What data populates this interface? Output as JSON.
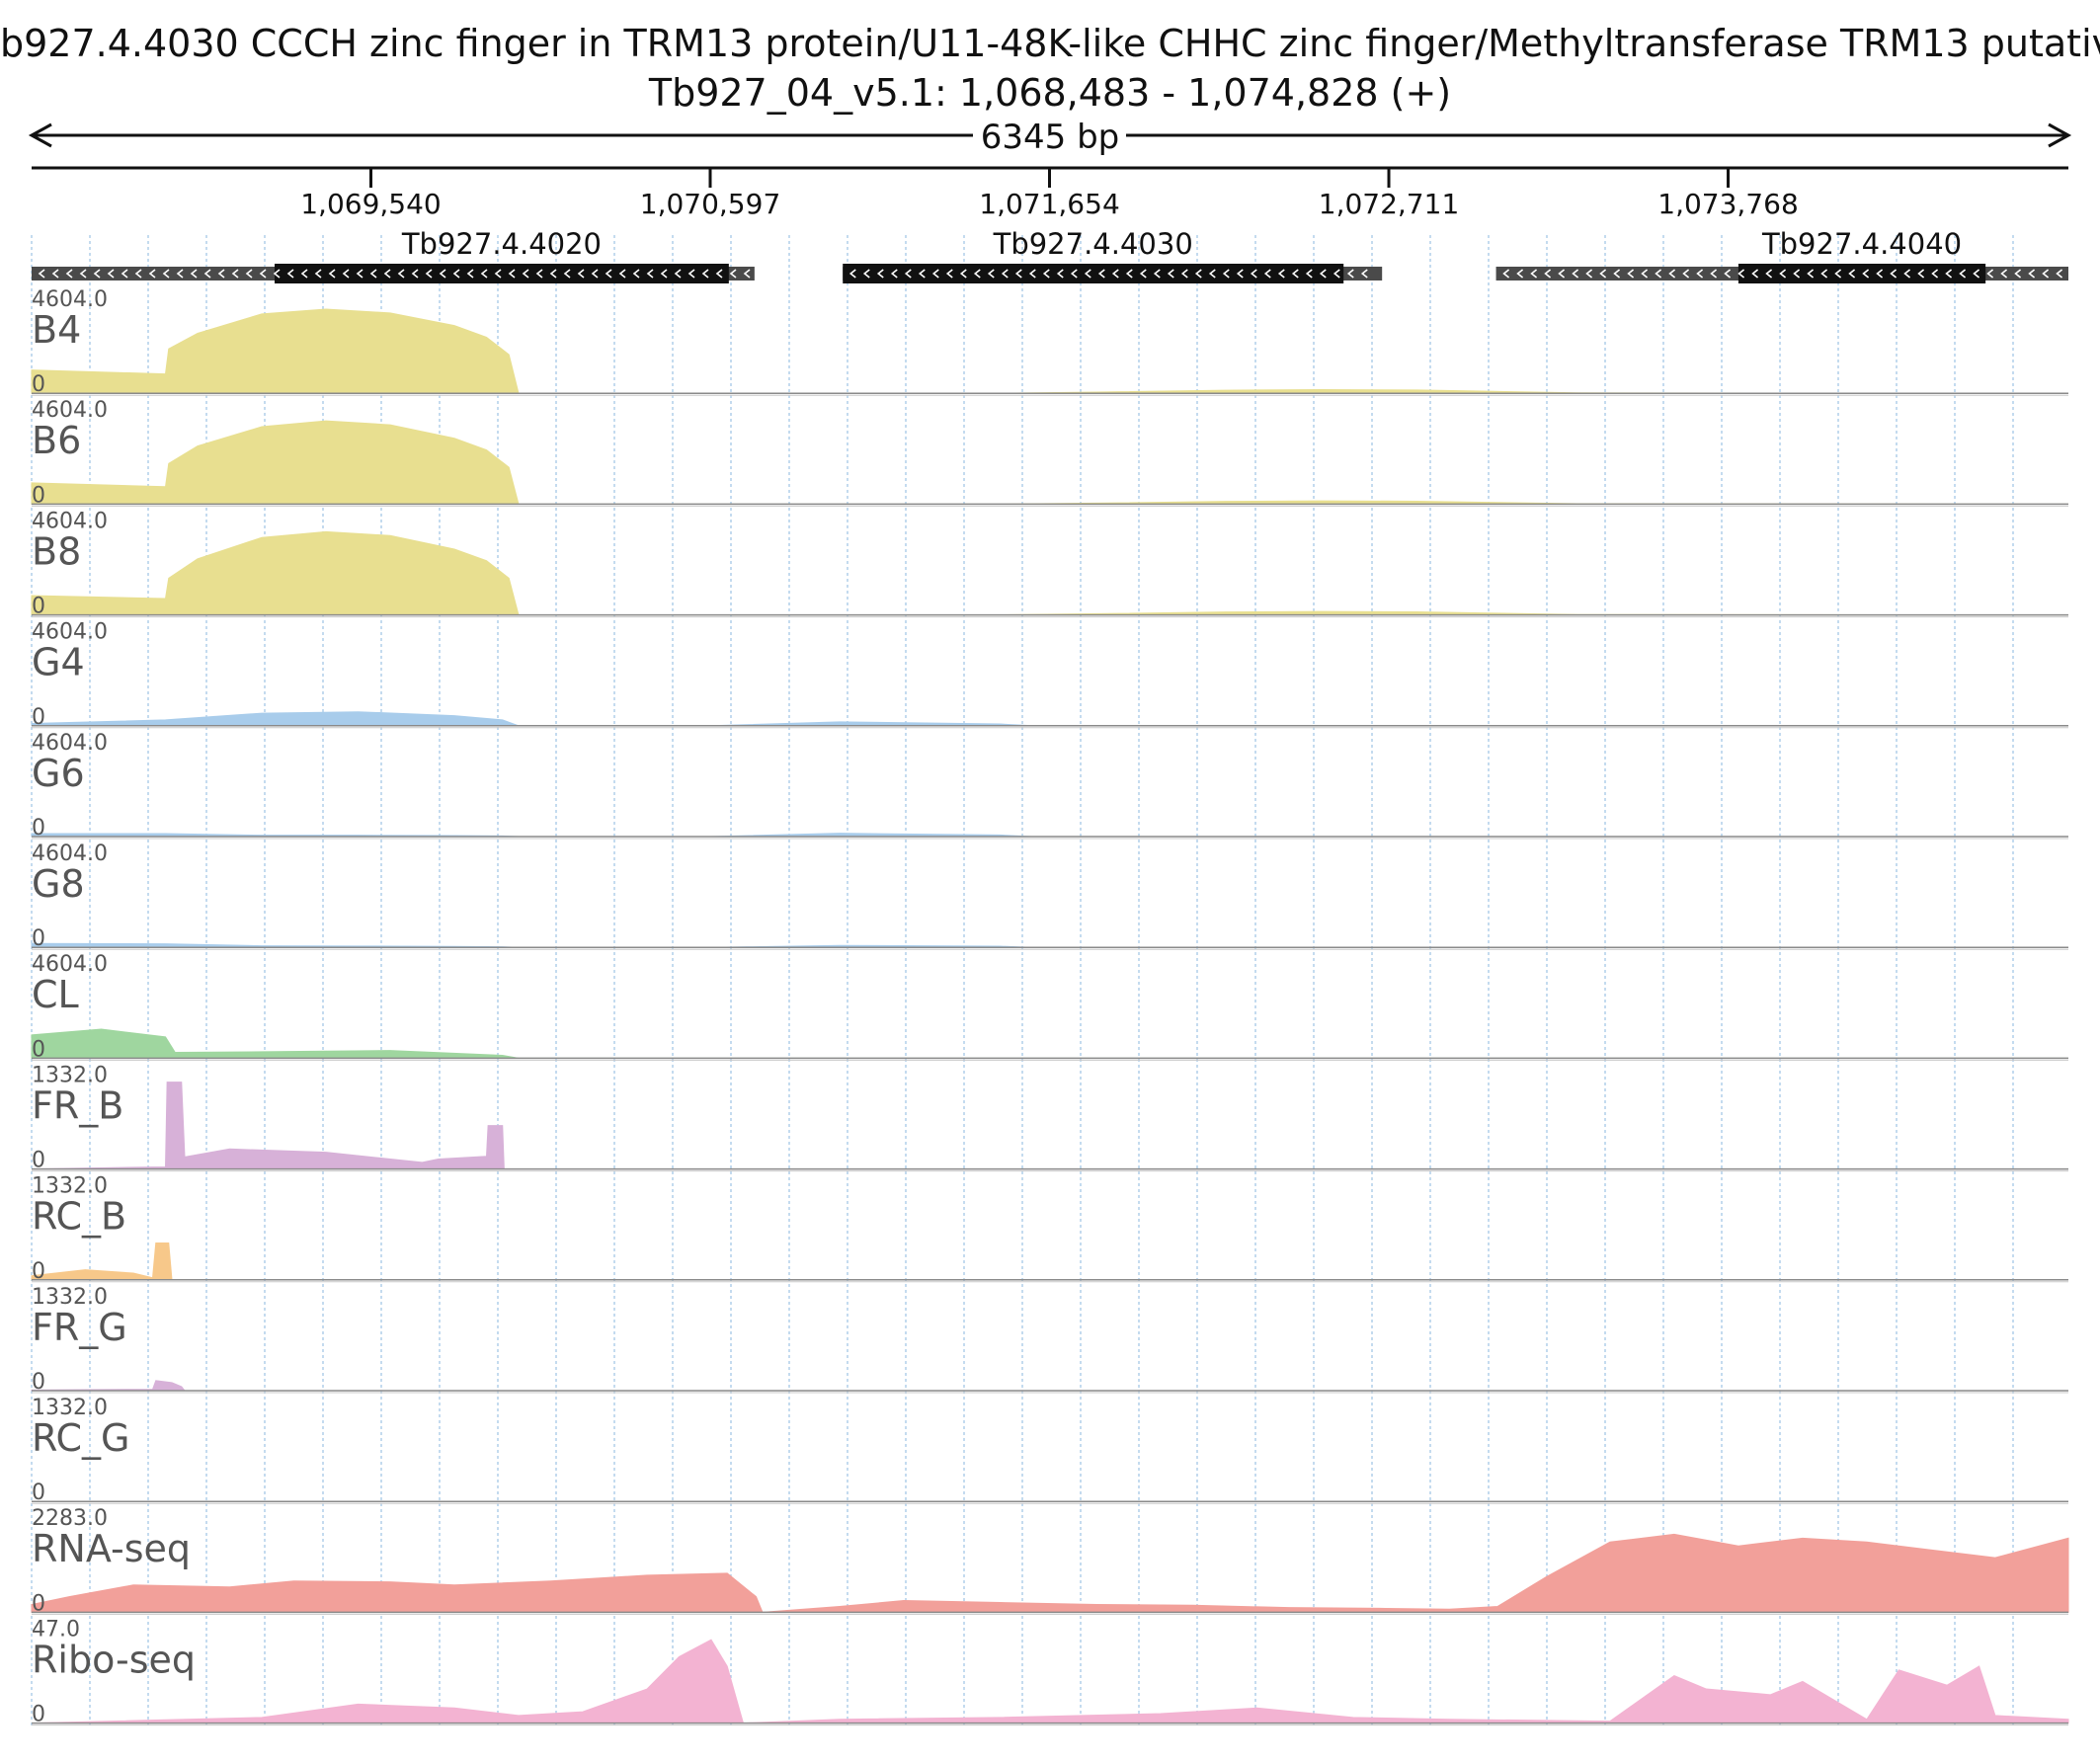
{
  "header": {
    "title": "b927.4.4030  CCCH zinc finger in TRM13 protein/U11-48K-like CHHC zinc finger/Methyltransferase TRM13  putativ",
    "locus": "Tb927_04_v5.1: 1,068,483 - 1,074,828 (+)",
    "span_label": "6345 bp"
  },
  "chart_data": {
    "type": "area",
    "x_range": [
      1068483,
      1074828
    ],
    "x_ticks": [
      {
        "value": 1069540,
        "label": "1,069,540"
      },
      {
        "value": 1070597,
        "label": "1,070,597"
      },
      {
        "value": 1071654,
        "label": "1,071,654"
      },
      {
        "value": 1072711,
        "label": "1,072,711"
      },
      {
        "value": 1073768,
        "label": "1,073,768"
      }
    ],
    "grid": true,
    "genes": [
      {
        "name": "Tb927.4.4020",
        "strand": "-",
        "utr_start": 1068483,
        "cds_start": 1069240,
        "cds_end": 1070655,
        "utr_end": 1070735
      },
      {
        "name": "Tb927.4.4030",
        "strand": "-",
        "utr_start": 1071010,
        "cds_start": 1071010,
        "cds_end": 1072570,
        "utr_end": 1072690
      },
      {
        "name": "Tb927.4.4040",
        "strand": "-",
        "utr_start": 1073045,
        "cds_start": 1073800,
        "cds_end": 1074570,
        "utr_end": 1074828
      }
    ],
    "tracks": [
      {
        "name": "B4",
        "ymax_label": "4604.0",
        "ymin_label": "0",
        "ylim": [
          0,
          4604
        ],
        "color": "#e8df90",
        "x": [
          1068483,
          1068900,
          1068910,
          1069000,
          1069200,
          1069400,
          1069600,
          1069800,
          1069900,
          1069970,
          1070000,
          1071500,
          1071800,
          1072200,
          1072500,
          1072800,
          1073000,
          1073300,
          1074828
        ],
        "y": [
          1200,
          1000,
          2300,
          3100,
          4100,
          4350,
          4150,
          3500,
          2900,
          2000,
          0,
          0,
          60,
          160,
          190,
          170,
          110,
          20,
          0
        ]
      },
      {
        "name": "B6",
        "ymax_label": "4604.0",
        "ymin_label": "0",
        "ylim": [
          0,
          4604
        ],
        "color": "#e8df90",
        "x": [
          1068483,
          1068900,
          1068910,
          1069000,
          1069200,
          1069400,
          1069600,
          1069800,
          1069900,
          1069970,
          1070000,
          1071500,
          1071800,
          1072200,
          1072500,
          1072800,
          1073000,
          1073300,
          1074828
        ],
        "y": [
          1100,
          900,
          2100,
          3000,
          4000,
          4300,
          4100,
          3400,
          2800,
          1900,
          0,
          0,
          50,
          140,
          170,
          150,
          100,
          20,
          0
        ]
      },
      {
        "name": "B8",
        "ymax_label": "4604.0",
        "ymin_label": "0",
        "ylim": [
          0,
          4604
        ],
        "color": "#e8df90",
        "x": [
          1068483,
          1068900,
          1068910,
          1069000,
          1069200,
          1069400,
          1069600,
          1069800,
          1069900,
          1069970,
          1070000,
          1071500,
          1071800,
          1072200,
          1072500,
          1072800,
          1073000,
          1073300,
          1074828
        ],
        "y": [
          1000,
          850,
          1900,
          2900,
          4000,
          4300,
          4100,
          3400,
          2800,
          1900,
          0,
          0,
          60,
          150,
          180,
          160,
          100,
          20,
          0
        ]
      },
      {
        "name": "G4",
        "ymax_label": "4604.0",
        "ymin_label": "0",
        "ylim": [
          0,
          4604
        ],
        "color": "#a8cceb",
        "x": [
          1068483,
          1068900,
          1069200,
          1069500,
          1069800,
          1069950,
          1070000,
          1070600,
          1071000,
          1071500,
          1071600,
          1074828
        ],
        "y": [
          120,
          300,
          650,
          720,
          520,
          300,
          0,
          0,
          200,
          90,
          0,
          0
        ]
      },
      {
        "name": "G6",
        "ymax_label": "4604.0",
        "ymin_label": "0",
        "ylim": [
          0,
          4604
        ],
        "color": "#a8cceb",
        "x": [
          1068483,
          1068900,
          1069200,
          1069500,
          1069800,
          1069950,
          1070000,
          1070600,
          1071000,
          1071500,
          1071600,
          1074828
        ],
        "y": [
          150,
          150,
          70,
          70,
          50,
          30,
          0,
          0,
          170,
          80,
          0,
          0
        ]
      },
      {
        "name": "G8",
        "ymax_label": "4604.0",
        "ymin_label": "0",
        "ylim": [
          0,
          4604
        ],
        "color": "#a8cceb",
        "x": [
          1068483,
          1068900,
          1069200,
          1069500,
          1069800,
          1069950,
          1070000,
          1070600,
          1071000,
          1071500,
          1071600,
          1074828
        ],
        "y": [
          200,
          180,
          80,
          70,
          50,
          30,
          0,
          0,
          100,
          60,
          0,
          0
        ]
      },
      {
        "name": "CL",
        "ymax_label": "4604.0",
        "ymin_label": "0",
        "ylim": [
          0,
          4604
        ],
        "color": "#9fd69f",
        "x": [
          1068483,
          1068700,
          1068900,
          1068930,
          1069200,
          1069600,
          1069950,
          1070000,
          1074828
        ],
        "y": [
          1200,
          1500,
          1100,
          300,
          330,
          400,
          150,
          0,
          0
        ]
      },
      {
        "name": "FR_B",
        "ymax_label": "1332.0",
        "ymin_label": "0",
        "ylim": [
          0,
          1332
        ],
        "color": "#d7b1d8",
        "x": [
          1068483,
          1068860,
          1068900,
          1068905,
          1068950,
          1068960,
          1069100,
          1069400,
          1069700,
          1069750,
          1069900,
          1069905,
          1069950,
          1069955,
          1074828
        ],
        "y": [
          0,
          30,
          30,
          1300,
          1300,
          180,
          300,
          250,
          100,
          150,
          190,
          650,
          650,
          0,
          0
        ]
      },
      {
        "name": "RC_B",
        "ymax_label": "1332.0",
        "ymin_label": "0",
        "ylim": [
          0,
          1332
        ],
        "color": "#f7c88a",
        "x": [
          1068483,
          1068650,
          1068800,
          1068860,
          1068870,
          1068910,
          1068920,
          1074828
        ],
        "y": [
          60,
          150,
          100,
          30,
          550,
          550,
          0,
          0
        ]
      },
      {
        "name": "FR_G",
        "ymax_label": "1332.0",
        "ymin_label": "0",
        "ylim": [
          0,
          1332
        ],
        "color": "#d7b1d8",
        "x": [
          1068483,
          1068860,
          1068870,
          1068920,
          1068950,
          1068960,
          1074828
        ],
        "y": [
          10,
          20,
          150,
          120,
          60,
          0,
          0
        ]
      },
      {
        "name": "RC_G",
        "ymax_label": "1332.0",
        "ymin_label": "0",
        "ylim": [
          0,
          1332
        ],
        "color": "#f7c88a",
        "x": [
          1068483,
          1074828
        ],
        "y": [
          0,
          0
        ]
      },
      {
        "name": "RNA-seq",
        "ymax_label": "2283.0",
        "ymin_label": "0",
        "ylim": [
          0,
          2283
        ],
        "color": "#f2a09a",
        "x": [
          1068483,
          1068600,
          1068800,
          1069100,
          1069300,
          1069600,
          1069800,
          1070100,
          1070400,
          1070650,
          1070740,
          1070760,
          1071000,
          1071200,
          1071500,
          1071800,
          1072100,
          1072400,
          1072700,
          1072900,
          1073050,
          1073200,
          1073400,
          1073600,
          1073800,
          1074000,
          1074200,
          1074400,
          1074600,
          1074828
        ],
        "y": [
          200,
          400,
          700,
          650,
          800,
          780,
          700,
          800,
          950,
          1000,
          400,
          0,
          150,
          300,
          250,
          200,
          180,
          120,
          100,
          80,
          150,
          900,
          1800,
          2000,
          1700,
          1900,
          1800,
          1600,
          1400,
          1900
        ]
      },
      {
        "name": "Ribo-seq",
        "ymax_label": "47.0",
        "ymin_label": "0",
        "ylim": [
          0,
          47
        ],
        "color": "#f3b3d2",
        "x": [
          1068483,
          1069200,
          1069500,
          1069800,
          1070000,
          1070200,
          1070400,
          1070500,
          1070600,
          1070650,
          1070700,
          1071000,
          1071500,
          1072000,
          1072300,
          1072600,
          1072900,
          1073400,
          1073600,
          1073700,
          1073900,
          1074000,
          1074200,
          1074300,
          1074450,
          1074550,
          1074600,
          1074828
        ],
        "y": [
          0,
          3,
          10,
          8,
          4,
          6,
          18,
          35,
          44,
          30,
          0,
          2,
          3,
          5,
          8,
          3,
          2,
          1,
          25,
          18,
          15,
          22,
          2,
          28,
          20,
          30,
          4,
          2
        ]
      }
    ]
  }
}
